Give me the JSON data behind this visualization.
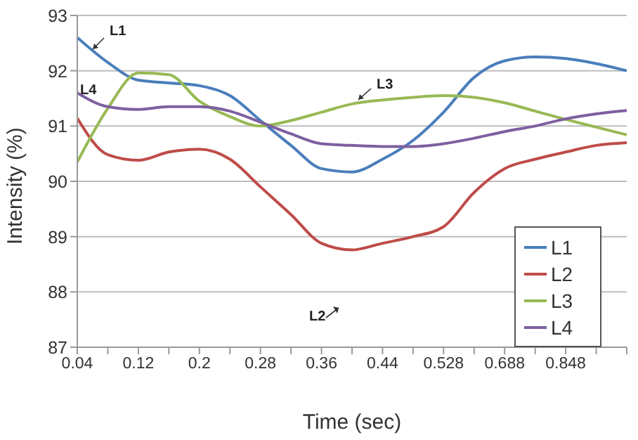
{
  "chart_data": {
    "type": "line",
    "xlabel": "Time (sec)",
    "ylabel": "Intensity (%)",
    "categories": [
      "0.04",
      null,
      "0.12",
      null,
      "0.2",
      null,
      "0.28",
      null,
      "0.36",
      null,
      "0.44",
      null,
      "0.528",
      null,
      "0.688",
      null,
      "0.848",
      null,
      null
    ],
    "series": [
      {
        "name": "L1",
        "color": "#4a7ebb",
        "values": [
          92.6,
          92.15,
          91.83,
          91.78,
          91.73,
          91.55,
          91.1,
          90.65,
          90.23,
          90.17,
          90.4,
          90.74,
          91.25,
          91.88,
          92.18,
          92.25,
          92.22,
          92.13,
          92.0
        ]
      },
      {
        "name": "L2",
        "color": "#be4b48",
        "values": [
          91.14,
          90.48,
          90.38,
          90.53,
          90.58,
          90.4,
          89.9,
          89.4,
          88.88,
          88.76,
          88.88,
          89.0,
          89.18,
          89.8,
          90.23,
          90.4,
          90.53,
          90.65,
          90.7
        ]
      },
      {
        "name": "L3",
        "color": "#98b954",
        "values": [
          90.35,
          91.32,
          91.96,
          91.93,
          91.45,
          91.17,
          91.0,
          91.1,
          91.25,
          91.4,
          91.47,
          91.52,
          91.55,
          91.52,
          91.42,
          91.27,
          91.12,
          90.98,
          90.84
        ]
      },
      {
        "name": "L4",
        "color": "#7d60a0",
        "values": [
          91.6,
          91.35,
          91.3,
          91.35,
          91.35,
          91.27,
          91.07,
          90.86,
          90.68,
          90.65,
          90.63,
          90.63,
          90.68,
          90.78,
          90.9,
          91.0,
          91.13,
          91.22,
          91.28
        ]
      }
    ],
    "ylim": [
      87,
      93
    ],
    "yticks": [
      87,
      88,
      89,
      90,
      91,
      92,
      93
    ],
    "grid": "y",
    "legend": "bottom right",
    "marker": "none",
    "line_style": "solid",
    "annotations": [
      "L1",
      "L2",
      "L3",
      "L4"
    ]
  }
}
